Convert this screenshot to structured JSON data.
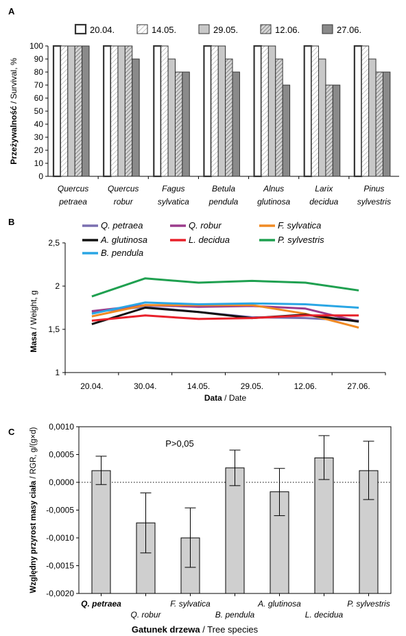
{
  "chart_data": [
    {
      "type": "bar",
      "panel": "A",
      "ylabel_bold": "Przeżywalność",
      "ylabel_rest": " / Survival, %",
      "ylim": [
        0,
        100
      ],
      "yticks": [
        "0",
        "10",
        "20",
        "30",
        "40",
        "50",
        "60",
        "70",
        "80",
        "90",
        "100"
      ],
      "legend_position": "top",
      "categories": [
        [
          "Quercus",
          "petraea"
        ],
        [
          "Quercus",
          "robur"
        ],
        [
          "Fagus",
          "sylvatica"
        ],
        [
          "Betula",
          "pendula"
        ],
        [
          "Alnus",
          "glutinosa"
        ],
        [
          "Larix",
          "decidua"
        ],
        [
          "Pinus",
          "sylvestris"
        ]
      ],
      "series": [
        {
          "name": "20.04.",
          "fill": "#ffffff",
          "pattern": "none",
          "values": [
            100,
            100,
            100,
            100,
            100,
            100,
            100
          ]
        },
        {
          "name": "14.05.",
          "fill": "#ffffff",
          "pattern": "hatch-light",
          "values": [
            100,
            100,
            100,
            100,
            100,
            100,
            100
          ]
        },
        {
          "name": "29.05.",
          "fill": "#c8c8c8",
          "pattern": "none",
          "values": [
            100,
            100,
            90,
            100,
            100,
            90,
            90
          ]
        },
        {
          "name": "12.06.",
          "fill": "#b4b4b4",
          "pattern": "hatch-dark",
          "values": [
            100,
            100,
            80,
            90,
            90,
            70,
            80
          ]
        },
        {
          "name": "27.06.",
          "fill": "#8a8a8a",
          "pattern": "none",
          "values": [
            100,
            90,
            80,
            80,
            70,
            70,
            80
          ]
        }
      ]
    },
    {
      "type": "line",
      "panel": "B",
      "ylabel_bold": "Masa",
      "ylabel_rest": " / Weight,  g",
      "xlabel_bold": "Data",
      "xlabel_rest": "  / Date",
      "ylim": [
        1,
        2.5
      ],
      "yticks": [
        "1",
        "1,5",
        "2",
        "2,5"
      ],
      "x": [
        "20.04.",
        "30.04.",
        "14.05.",
        "29.05.",
        "12.06.",
        "27.06."
      ],
      "legend_position": "top",
      "series": [
        {
          "name": "Q. petraea",
          "color": "#7a6fb0",
          "values": [
            1.7,
            1.76,
            1.7,
            1.64,
            1.63,
            1.6
          ]
        },
        {
          "name": "Q. robur",
          "color": "#9b3c8c",
          "values": [
            1.71,
            1.78,
            1.76,
            1.77,
            1.74,
            1.59
          ]
        },
        {
          "name": "F. sylvatica",
          "color": "#f08a24",
          "values": [
            1.65,
            1.78,
            1.78,
            1.78,
            1.68,
            1.52
          ]
        },
        {
          "name": "A. glutinosa",
          "color": "#111111",
          "values": [
            1.56,
            1.75,
            1.7,
            1.63,
            1.67,
            1.59
          ]
        },
        {
          "name": "L. decidua",
          "color": "#e8202a",
          "values": [
            1.6,
            1.66,
            1.62,
            1.63,
            1.66,
            1.66
          ]
        },
        {
          "name": "P. sylvestris",
          "color": "#1fa050",
          "values": [
            1.88,
            2.09,
            2.04,
            2.06,
            2.04,
            1.95
          ]
        },
        {
          "name": "B. pendula",
          "color": "#2aa6e4",
          "values": [
            1.68,
            1.81,
            1.79,
            1.8,
            1.79,
            1.75
          ]
        }
      ]
    },
    {
      "type": "bar",
      "panel": "C",
      "ylabel_bold": "Względny przyrost masy ciała",
      "ylabel_rest": " / RGR, g/(g×d)",
      "xlabel_bold": "Gatunek drzewa",
      "xlabel_rest": "     / Tree species",
      "annotation": "P>0,05",
      "ylim": [
        -0.002,
        0.001
      ],
      "yticks": [
        "-0,0020",
        "-0,0015",
        "-0,0010",
        "-0,0005",
        "0,0000",
        "0,0005",
        "0,0010"
      ],
      "categories": [
        "Q. petraea",
        "Q. robur",
        "F. sylvatica",
        "B. pendula",
        "A. glutinosa",
        "L. decidua",
        "P. sylvestris"
      ],
      "values": [
        0.00021,
        -0.00073,
        -0.001,
        0.00026,
        -0.00017,
        0.00044,
        0.00021
      ],
      "err_low": [
        -4e-05,
        -0.00127,
        -0.00153,
        -6e-05,
        -0.0006,
        5e-05,
        -0.00031
      ],
      "err_high": [
        0.00047,
        -0.00019,
        -0.00046,
        0.00058,
        0.00025,
        0.00084,
        0.00074
      ]
    }
  ],
  "panels": {
    "a": "A",
    "b": "B",
    "c": "C"
  }
}
